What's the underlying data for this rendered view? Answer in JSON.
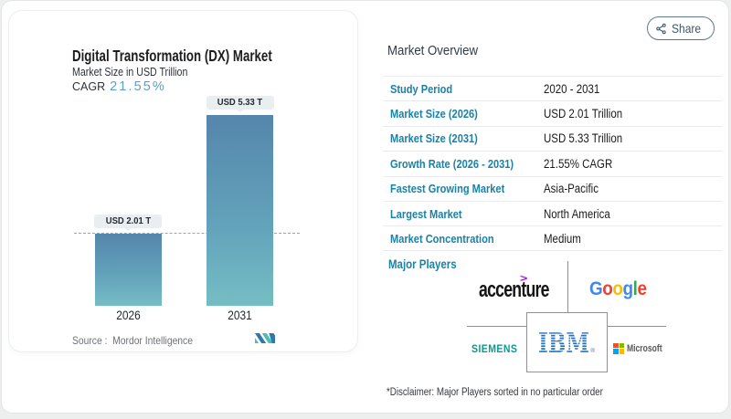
{
  "share": {
    "label": "Share"
  },
  "chart_panel": {
    "title": "Digital Transformation (DX) Market",
    "subtitle": "Market Size in USD Trillion",
    "cagr_label": "CAGR",
    "cagr_value": "21.55%",
    "source_label": "Source :",
    "source_value": "Mordor Intelligence"
  },
  "chart_data": {
    "type": "bar",
    "title": "Digital Transformation (DX) Market",
    "ylabel": "Market Size in USD Trillion",
    "categories": [
      "2026",
      "2031"
    ],
    "values": [
      2.01,
      5.33
    ],
    "bar_labels": [
      "USD 2.01 T",
      "USD 5.33 T"
    ],
    "unit": "USD Trillion",
    "cagr": "21.55%",
    "reference_line": {
      "value": 2.01,
      "style": "dashed"
    },
    "bar_gradient": [
      "#5586ac",
      "#75bdc4"
    ]
  },
  "overview": {
    "heading": "Market Overview",
    "rows": [
      {
        "label": "Study Period",
        "value": "2020 - 2031"
      },
      {
        "label": "Market Size (2026)",
        "value": "USD 2.01 Trillion"
      },
      {
        "label": "Market Size (2031)",
        "value": "USD 5.33 Trillion"
      },
      {
        "label": "Growth Rate (2026 - 2031)",
        "value": "21.55% CAGR"
      },
      {
        "label": "Fastest Growing Market",
        "value": "Asia-Pacific"
      },
      {
        "label": "Largest Market",
        "value": "North America"
      },
      {
        "label": "Market Concentration",
        "value": "Medium"
      }
    ],
    "major_players_label": "Major Players",
    "players": {
      "accenture": {
        "word": "accenture",
        "caret": ">",
        "caret_color": "#a100ff"
      },
      "google": {
        "word": "Google",
        "letter_colors": [
          "#4285f4",
          "#ea4335",
          "#fbbc05",
          "#4285f4",
          "#34a853",
          "#ea4335"
        ]
      },
      "siemens": {
        "word": "SIEMENS",
        "color": "#0a9a93"
      },
      "ibm": {
        "word": "IBM",
        "reg": "®",
        "color": "#1f70c1"
      },
      "microsoft": {
        "word": "Microsoft",
        "icon_colors": [
          "#f25022",
          "#7fba00",
          "#00a4ef",
          "#ffb900"
        ]
      }
    },
    "disclaimer": "*Disclaimer: Major Players sorted in no particular order"
  }
}
